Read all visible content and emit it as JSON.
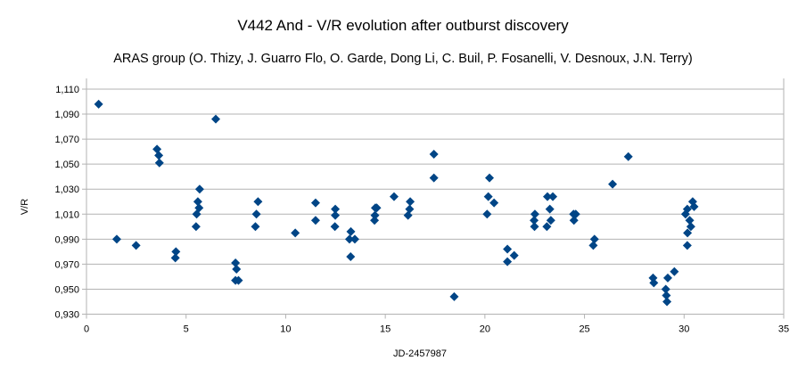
{
  "chart_data": {
    "type": "scatter",
    "title": "V442 And - V/R evolution after outburst discovery",
    "subtitle": "ARAS group (O. Thizy, J. Guarro Flo, O. Garde, Dong Li, C. Buil, P. Fosanelli, V. Desnoux, J.N. Terry)",
    "xlabel": "JD-2457987",
    "ylabel": "V/R",
    "xlim": [
      0,
      35
    ],
    "ylim": [
      0.93,
      1.11
    ],
    "xticks": [
      "0",
      "5",
      "10",
      "15",
      "20",
      "25",
      "30",
      "35"
    ],
    "yticks": [
      "0,930",
      "0,950",
      "0,970",
      "0,990",
      "1,010",
      "1,030",
      "1,050",
      "1,070",
      "1,090",
      "1,110"
    ],
    "grid": "horizontal",
    "marker_color": "#004586",
    "points": [
      [
        0.61,
        1.098
      ],
      [
        1.52,
        0.99
      ],
      [
        2.49,
        0.985
      ],
      [
        3.54,
        1.062
      ],
      [
        3.63,
        1.057
      ],
      [
        3.66,
        1.051
      ],
      [
        4.49,
        0.98
      ],
      [
        4.46,
        0.975
      ],
      [
        5.68,
        1.03
      ],
      [
        5.59,
        1.02
      ],
      [
        5.65,
        1.015
      ],
      [
        5.53,
        1.01
      ],
      [
        5.5,
        1.0
      ],
      [
        6.49,
        1.086
      ],
      [
        7.48,
        0.971
      ],
      [
        7.53,
        0.966
      ],
      [
        7.48,
        0.957
      ],
      [
        7.63,
        0.957
      ],
      [
        8.61,
        1.02
      ],
      [
        8.53,
        1.01
      ],
      [
        8.48,
        1.0
      ],
      [
        10.48,
        0.995
      ],
      [
        11.5,
        1.019
      ],
      [
        11.5,
        1.005
      ],
      [
        12.49,
        1.014
      ],
      [
        12.49,
        1.009
      ],
      [
        12.47,
        1.0
      ],
      [
        13.27,
        0.996
      ],
      [
        13.2,
        0.99
      ],
      [
        13.47,
        0.99
      ],
      [
        13.26,
        0.976
      ],
      [
        14.5,
        1.015
      ],
      [
        14.57,
        1.015
      ],
      [
        14.48,
        1.009
      ],
      [
        14.46,
        1.005
      ],
      [
        15.44,
        1.024
      ],
      [
        16.25,
        1.02
      ],
      [
        16.22,
        1.014
      ],
      [
        16.14,
        1.009
      ],
      [
        17.44,
        1.058
      ],
      [
        17.44,
        1.039
      ],
      [
        18.46,
        0.944
      ],
      [
        20.23,
        1.039
      ],
      [
        20.17,
        1.024
      ],
      [
        20.46,
        1.019
      ],
      [
        20.11,
        1.01
      ],
      [
        21.13,
        0.982
      ],
      [
        21.47,
        0.977
      ],
      [
        21.13,
        0.972
      ],
      [
        22.51,
        1.01
      ],
      [
        22.47,
        1.005
      ],
      [
        22.49,
        1.0
      ],
      [
        23.14,
        1.024
      ],
      [
        23.41,
        1.024
      ],
      [
        23.26,
        1.014
      ],
      [
        23.31,
        1.005
      ],
      [
        23.11,
        1.0
      ],
      [
        24.45,
        1.01
      ],
      [
        24.56,
        1.01
      ],
      [
        24.47,
        1.005
      ],
      [
        25.5,
        0.99
      ],
      [
        25.44,
        0.985
      ],
      [
        26.41,
        1.034
      ],
      [
        27.2,
        1.056
      ],
      [
        28.44,
        0.959
      ],
      [
        28.48,
        0.955
      ],
      [
        29.18,
        0.959
      ],
      [
        29.51,
        0.964
      ],
      [
        29.08,
        0.95
      ],
      [
        29.11,
        0.945
      ],
      [
        29.14,
        0.94
      ],
      [
        30.07,
        1.01
      ],
      [
        30.16,
        1.014
      ],
      [
        30.28,
        1.005
      ],
      [
        30.34,
        1.0
      ],
      [
        30.17,
        0.995
      ],
      [
        30.16,
        0.985
      ],
      [
        30.43,
        1.02
      ],
      [
        30.5,
        1.016
      ]
    ]
  }
}
